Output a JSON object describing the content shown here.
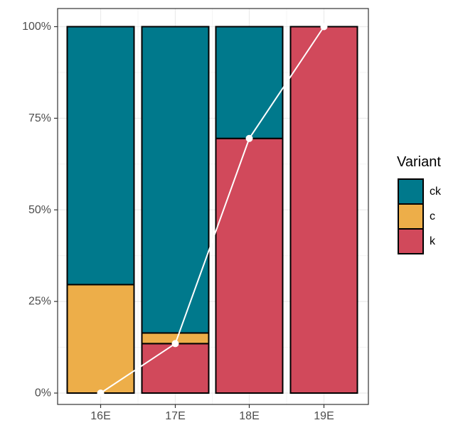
{
  "chart_data": {
    "type": "bar",
    "stacked": true,
    "categories": [
      "16E",
      "17E",
      "18E",
      "19E"
    ],
    "series": [
      {
        "name": "k",
        "color": "#D1495B",
        "values": [
          0,
          13.5,
          69.5,
          100
        ]
      },
      {
        "name": "c",
        "color": "#EDAE49",
        "values": [
          29.6,
          2.9,
          0,
          0
        ]
      },
      {
        "name": "ck",
        "color": "#00798C",
        "values": [
          70.4,
          83.6,
          30.5,
          0
        ]
      }
    ],
    "line": {
      "color": "#ffffff",
      "values": [
        0,
        13.5,
        69.5,
        100
      ]
    },
    "ylim": [
      0,
      100
    ],
    "ytick_values": [
      0,
      25,
      50,
      75,
      100
    ],
    "ytick_labels": [
      "0%",
      "25%",
      "50%",
      "75%",
      "100%"
    ],
    "xlabel": "",
    "ylabel": "",
    "grid": true,
    "legend": {
      "title": "Variant",
      "position": "right",
      "entries": [
        "ck",
        "c",
        "k"
      ]
    }
  }
}
